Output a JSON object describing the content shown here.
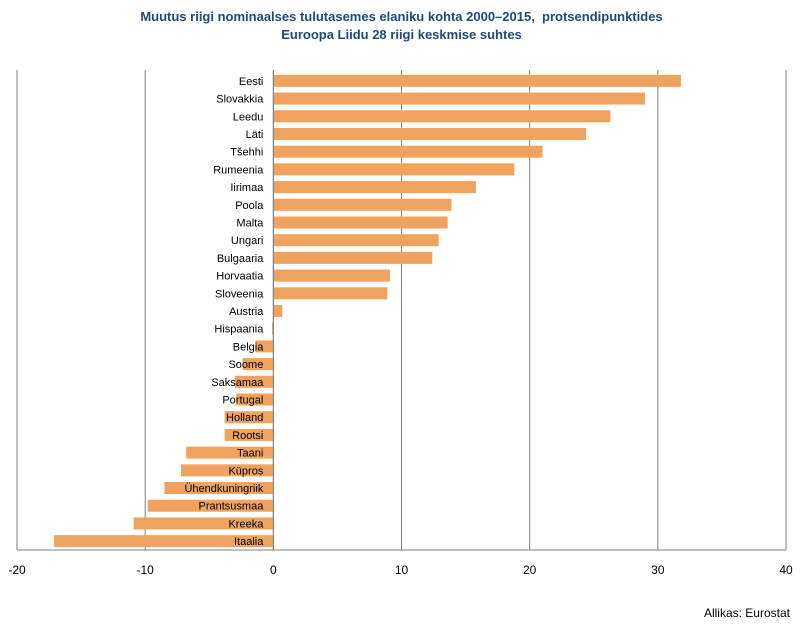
{
  "chart_data": {
    "type": "bar",
    "orientation": "horizontal",
    "title": [
      "Muutus riigi nominaalses tulutasemes elaniku kohta 2000–2015,  protsendipunktides",
      "Euroopa Liidu 28 riigi keskmise suhtes"
    ],
    "categories": [
      "Eesti",
      "Slovakkia",
      "Leedu",
      "Läti",
      "Tšehhi",
      "Rumeenia",
      "Iirimaa",
      "Poola",
      "Malta",
      "Ungari",
      "Bulgaaria",
      "Horvaatia",
      "Sloveenia",
      "Austria",
      "Hispaania",
      "Belgia",
      "Soome",
      "Saksamaa",
      "Portugal",
      "Holland",
      "Rootsi",
      "Taani",
      "Küpros",
      "Ühendkuningriik",
      "Prantsusmaa",
      "Kreeka",
      "Itaalia"
    ],
    "values": [
      31.8,
      29.0,
      26.3,
      24.4,
      21.0,
      18.8,
      15.8,
      13.9,
      13.6,
      12.9,
      12.4,
      9.1,
      8.9,
      0.7,
      -0.1,
      -1.4,
      -2.4,
      -3.0,
      -2.9,
      -3.8,
      -3.8,
      -6.8,
      -7.2,
      -8.5,
      -9.8,
      -10.9,
      -17.1
    ],
    "xlim": [
      -20,
      40
    ],
    "xticks": [
      -20,
      -10,
      0,
      10,
      20,
      30,
      40
    ],
    "grid": true,
    "bar_color": "#f0a35e",
    "gridline_color": "#7f7f7f"
  },
  "source": "Allikas: Eurostat"
}
